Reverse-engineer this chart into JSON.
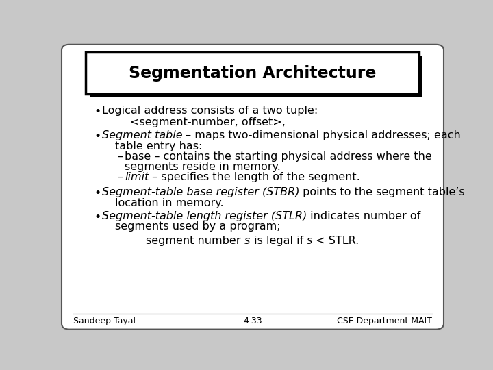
{
  "title": "Segmentation Architecture",
  "bg_color": "#c8c8c8",
  "slide_bg": "#ffffff",
  "title_fontsize": 17,
  "body_fontsize": 11.5,
  "footer_fontsize": 9,
  "footer_left": "Sandeep Tayal",
  "footer_center": "4.33",
  "footer_right": "CSE Department MAIT"
}
